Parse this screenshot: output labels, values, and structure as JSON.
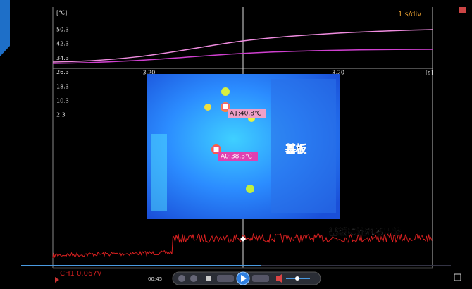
{
  "scope": {
    "y_unit": "[℃]",
    "timebase": "1 s/div",
    "y_labels": [
      "50.3",
      "42.3",
      "34.3",
      "26.3",
      "18.3",
      "10.3",
      "2.3"
    ],
    "x_labels": [
      "-3.20",
      "3.20"
    ],
    "x_unit": "[s]"
  },
  "thermal": {
    "markers": [
      "A1:40.8℃",
      "A0:38.3℃"
    ],
    "label": "基板"
  },
  "signal_label": "基板に流れる電流",
  "channel": "CH1  0.067V",
  "player": {
    "time": "00:45"
  }
}
